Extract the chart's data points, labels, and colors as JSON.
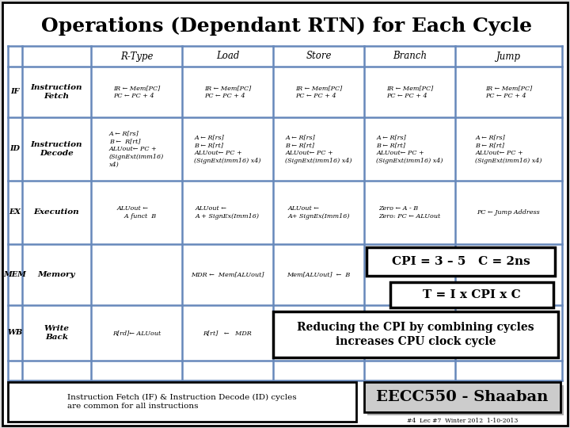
{
  "title": "Operations (Dependant RTN) for Each Cycle",
  "title_fontsize": 18,
  "columns": [
    "R-Type",
    "Load",
    "Store",
    "Branch",
    "Jump"
  ],
  "if_rtype": "IR ← Mem[PC]\nPC ← PC + 4",
  "if_load": "IR ← Mem[PC]\nPC ← PC + 4",
  "if_store": "IR ← Mem[PC]\nPC ← PC + 4",
  "if_branch": "IR ← Mem[PC]\nPC ← PC + 4",
  "if_jump": "IR ← Mem[PC]\nPC ← PC + 4",
  "id_rtype": "A ← R[rs]\nB ←  R[rt]\nALUout← PC +\n(SignExt(imm16)\nx4)",
  "id_load": "A ← R[rs]\nB ← R[rt]\nALUout← PC +\n(SignExt(imm16) x4)",
  "id_store": "A ← R[rs]\nB ← R[rt]\nALUout← PC +\n(SignExt(imm16) x4)",
  "id_branch": "A ← R[rs]\nB ← R[rt]\nALUout← PC +\n(SignExt(imm16) x4)",
  "id_jump": "A ← R[rs]\nB ← R[rt]\nALUout← PC +\n(SignExt(imm16) x4)",
  "ex_rtype": "ALUout ←\n    A funct  B",
  "ex_load": "ALUout ←\nA + SignEx(Imm16)",
  "ex_store": "ALUout ←\nA+ SignEx(Imm16)",
  "ex_branch": "Zero ← A - B\nZero: PC ← ALUout",
  "ex_jump": "PC ← Jump Address",
  "mem_load": "MDR ←  Mem[ALUout]",
  "mem_store": "Mem[ALUout]  ←  B",
  "wb_rtype": "R[rd]← ALUout",
  "wb_load": "R[rt]   ←   MDR",
  "cpi_text": "CPI = 3 – 5   C = 2ns",
  "t_text": "T = I x CPI x C",
  "reducing_text": "Reducing the CPI by combining cycles\nincreases CPU clock cycle",
  "footer_left": "Instruction Fetch (IF) & Instruction Decode (ID) cycles\nare common for all instructions",
  "footer_right": "EECC550 - Shaaban",
  "footer_sub": "#4  Lec #7  Winter 2012  1-10-2013",
  "grid_color": "#6688bb",
  "cell_fs": 5.8,
  "header_fs": 8.5,
  "label_fs": 7.0,
  "name_fs": 7.5
}
